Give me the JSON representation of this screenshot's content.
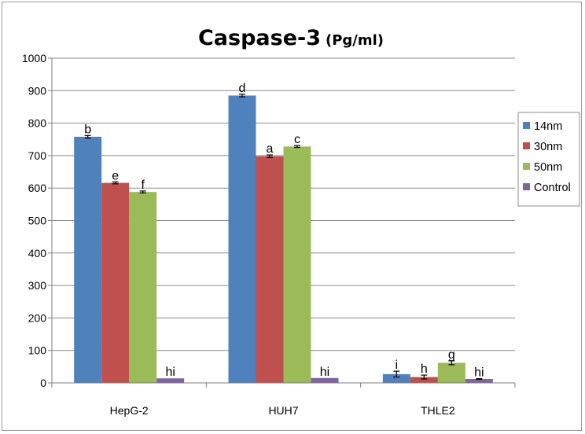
{
  "chart_data": {
    "type": "bar",
    "title": "Caspase-3",
    "title_unit": "(Pg/ml)",
    "categories": [
      "HepG-2",
      "HUH7",
      "THLE2"
    ],
    "ylim": [
      0,
      1000
    ],
    "yticks": [
      0,
      100,
      200,
      300,
      400,
      500,
      600,
      700,
      800,
      900,
      1000
    ],
    "grid": true,
    "legend_position": "right",
    "series": [
      {
        "name": "14nm",
        "color": "#4f81bd",
        "values": [
          758,
          885,
          27
        ],
        "errors": [
          4,
          4,
          9
        ],
        "labels": [
          "b",
          "d",
          "i"
        ]
      },
      {
        "name": "30nm",
        "color": "#c0504d",
        "values": [
          616,
          698,
          18
        ],
        "errors": [
          3,
          4,
          6
        ],
        "labels": [
          "e",
          "a",
          "h"
        ]
      },
      {
        "name": "50nm",
        "color": "#9bbb59",
        "values": [
          588,
          728,
          62
        ],
        "errors": [
          3,
          3,
          6
        ],
        "labels": [
          "f",
          "c",
          "g"
        ]
      },
      {
        "name": "Control",
        "color": "#8064a2",
        "values": [
          14,
          15,
          12
        ],
        "errors": [
          0,
          0,
          1
        ],
        "labels": [
          "hi",
          "hi",
          "hi"
        ]
      }
    ]
  }
}
